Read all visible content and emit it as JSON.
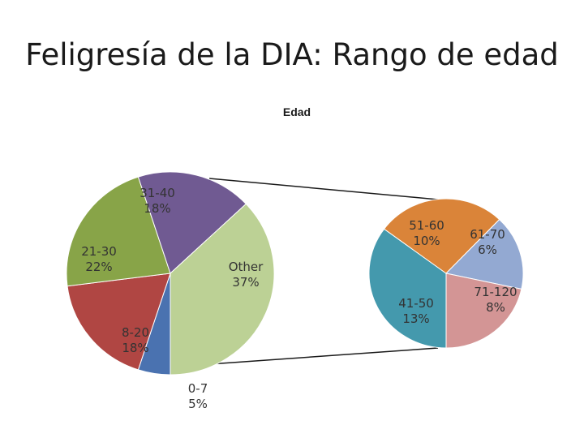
{
  "slide_title": "Feligresía de la DIA: Rango de edad",
  "chart_data": {
    "type": "bar-of-pie",
    "title": "Edad",
    "main_pie": [
      {
        "label": "0-7",
        "percent_text": "5%",
        "value": 5,
        "color": "#4a72b0"
      },
      {
        "label": "8-20",
        "percent_text": "18%",
        "value": 18,
        "color": "#b04643"
      },
      {
        "label": "21-30",
        "percent_text": "22%",
        "value": 22,
        "color": "#88a448"
      },
      {
        "label": "31-40",
        "percent_text": "18%",
        "value": 18,
        "color": "#705a92"
      },
      {
        "label": "Other",
        "percent_text": "37%",
        "value": 37,
        "color": "#bcd195"
      }
    ],
    "secondary_pie": [
      {
        "label": "41-50",
        "percent_text": "13%",
        "value": 13,
        "color": "#4499ad"
      },
      {
        "label": "51-60",
        "percent_text": "10%",
        "value": 10,
        "color": "#da8439"
      },
      {
        "label": "61-70",
        "percent_text": "6%",
        "value": 6,
        "color": "#93a9d2"
      },
      {
        "label": "71-120",
        "percent_text": "8%",
        "value": 8,
        "color": "#d39595"
      }
    ]
  }
}
